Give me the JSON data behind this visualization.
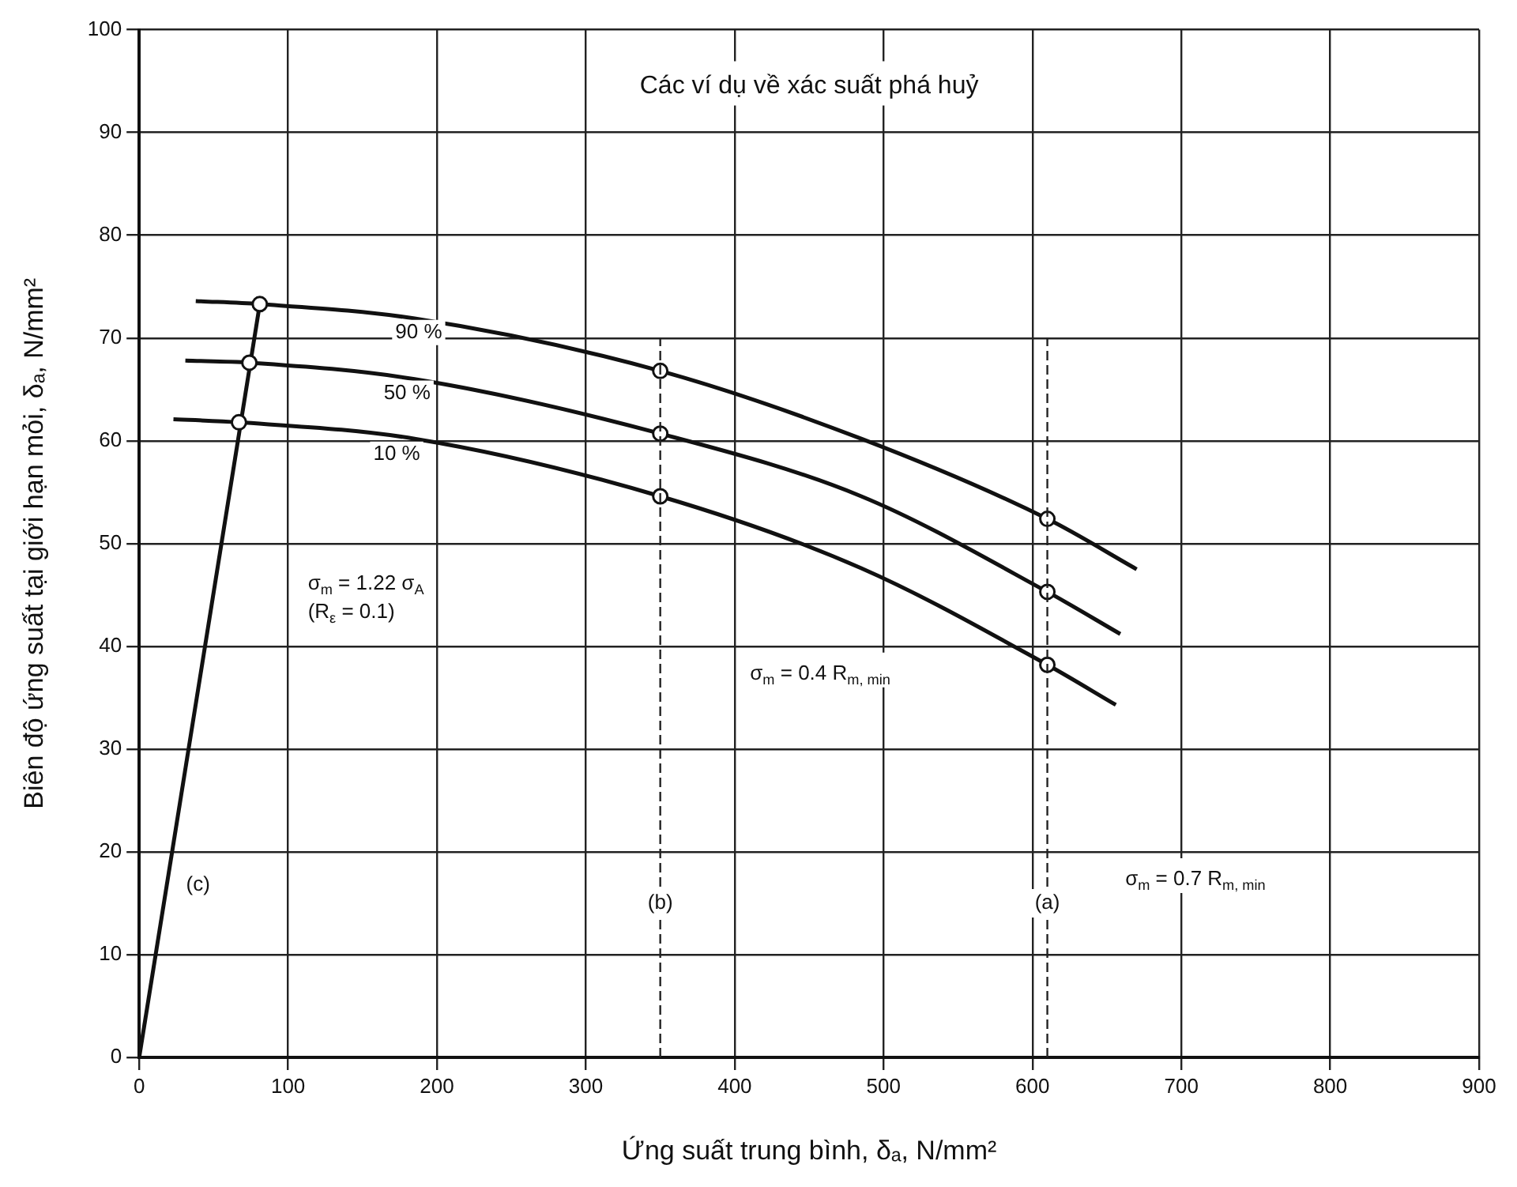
{
  "chart_data": {
    "type": "line",
    "title": "Các ví dụ về xác suất phá huỷ",
    "xlabel": "Ứng suất trung bình, δₐ, N/mm²",
    "ylabel": "Biên độ ứng suất tại giới hạn mỏi, δₐ, N/mm²",
    "xlim": [
      0,
      900
    ],
    "xticks": [
      0,
      100,
      200,
      300,
      400,
      500,
      600,
      700,
      800,
      900
    ],
    "ylim": [
      0,
      100
    ],
    "yticks": [
      0,
      10,
      20,
      30,
      40,
      50,
      60,
      70,
      80,
      90,
      100
    ],
    "grid": true,
    "legend": false,
    "marker": "none",
    "line_style": "solid",
    "series": [
      {
        "name": "90 %",
        "color": "#111111",
        "x": [
          38,
          81,
          185,
          350,
          485,
          610,
          670
        ],
        "values": [
          73.6,
          73.3,
          71.9,
          66.8,
          60.2,
          52.4,
          47.5
        ]
      },
      {
        "name": "50 %",
        "color": "#111111",
        "x": [
          31,
          74,
          185,
          350,
          485,
          610,
          659
        ],
        "values": [
          67.8,
          67.6,
          66.0,
          60.7,
          54.6,
          45.3,
          41.2
        ]
      },
      {
        "name": "10 %",
        "color": "#111111",
        "x": [
          23,
          67,
          185,
          350,
          485,
          610,
          656
        ],
        "values": [
          62.1,
          61.8,
          60.2,
          54.6,
          47.6,
          38.2,
          34.3
        ]
      },
      {
        "name": "(c)",
        "color": "#111111",
        "x": [
          0,
          81
        ],
        "values": [
          0,
          73.3
        ]
      },
      {
        "type": "scatter",
        "marker": "circle",
        "color": "#111111",
        "x": [
          81,
          74,
          67,
          350,
          350,
          350,
          610,
          610,
          610
        ],
        "values": [
          73.3,
          67.6,
          61.8,
          66.8,
          60.7,
          54.6,
          52.4,
          45.3,
          38.2
        ]
      }
    ],
    "ref_lines": [
      {
        "axis": "x",
        "value": 350,
        "label": "(b)"
      },
      {
        "axis": "x",
        "value": 610,
        "label": "(a)"
      }
    ],
    "annotations": [
      "σ$_{m}$ = 1.22 σ$_{A}$\n(R$_{ε}$ = 0.1)",
      "σ$_{m}$ = 0.4 R$_{m, min}$",
      "σ$_{m}$ = 0.7 R$_{m, min}$"
    ]
  }
}
